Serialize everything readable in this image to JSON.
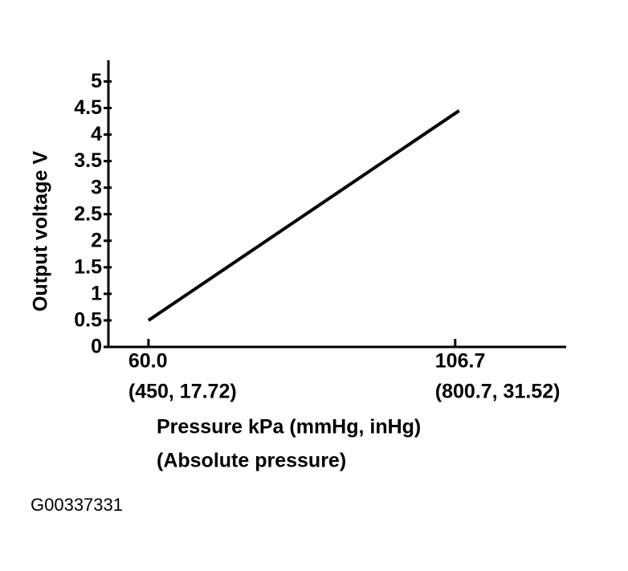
{
  "chart_data": {
    "type": "line",
    "y_label": "Output voltage V",
    "x_label": [
      "Pressure kPa (mmHg, inHg)",
      "(Absolute pressure)"
    ],
    "footnote": "G00337331",
    "xlim": [
      53.9,
      123.6
    ],
    "xticks": [
      {
        "value": 60,
        "label": "60.0"
      },
      {
        "value": 106.7,
        "label": "106.7"
      }
    ],
    "xtick_sublabels": [
      "(450, 17.72)",
      "(800.7, 31.52)"
    ],
    "ylim": [
      0,
      5.4
    ],
    "yticks": [
      0,
      0.5,
      1,
      1.5,
      2,
      2.5,
      3,
      3.5,
      4,
      4.5,
      5
    ],
    "color": "#000000",
    "x": [
      60,
      107.3
    ],
    "values": [
      0.5,
      4.45
    ]
  }
}
